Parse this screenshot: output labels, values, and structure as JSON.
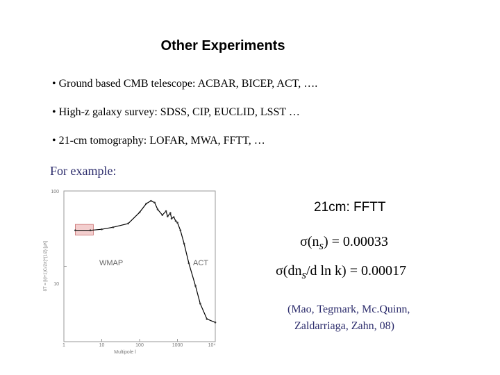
{
  "slide": {
    "title": "Other Experiments",
    "bullets": [
      "• Ground based CMB telescope: ACBAR, BICEP, ACT, ….",
      "• High-z galaxy survey: SDSS, CIP, EUCLID, LSST …",
      "• 21-cm tomography: LOFAR, MWA, FFTT, …"
    ],
    "example_label": "For example:"
  },
  "fftt": {
    "heading": "21cm: FFTT",
    "eq1": {
      "lhs": "σ(n",
      "sub": "s",
      "rhs": ") = 0.00033"
    },
    "eq2": {
      "lhs": "σ(dn",
      "sub": "s",
      "mid": "/d ln k) = 0.00017"
    },
    "citation_line1": "(Mao, Tegmark, Mc.Quinn,",
    "citation_line2": "Zaldarriaga, Zahn, 08)"
  },
  "figure": {
    "ylabel": "δT = [l(l+1)Cₗ/2π]^{1/2} [μK]",
    "xlabel": "Multipole l",
    "wmap_label": "WMAP",
    "act_label": "ACT",
    "y_top_tick": "100",
    "y_mid_tick": "10",
    "x_ticks": [
      "1",
      "10",
      "100",
      "1000",
      "10⁴"
    ],
    "colors": {
      "wmap_box": "#e9a6a6",
      "curve": "#000000"
    }
  },
  "chart_data": {
    "type": "line",
    "xlabel": "Multipole l",
    "ylabel": "δT = [l(l+1)Cₗ/2π]^{1/2} [μK]",
    "xscale": "log",
    "yscale": "log",
    "xlim": [
      1,
      10000
    ],
    "ylim": [
      1,
      100
    ],
    "series": [
      {
        "x": [
          2,
          5,
          10,
          20,
          50,
          100,
          150,
          200,
          250,
          300,
          400,
          500,
          550,
          650,
          700,
          800,
          900,
          1000,
          1200,
          1500,
          2000,
          3000,
          4000,
          6000,
          10000
        ],
        "y": [
          30,
          30,
          31,
          33,
          37,
          52,
          68,
          74,
          70,
          57,
          48,
          54,
          46,
          51,
          43,
          45,
          40,
          38,
          30,
          20,
          11,
          5.5,
          3.2,
          2.0,
          1.8
        ]
      }
    ],
    "annotations": [
      "WMAP",
      "ACT"
    ]
  }
}
